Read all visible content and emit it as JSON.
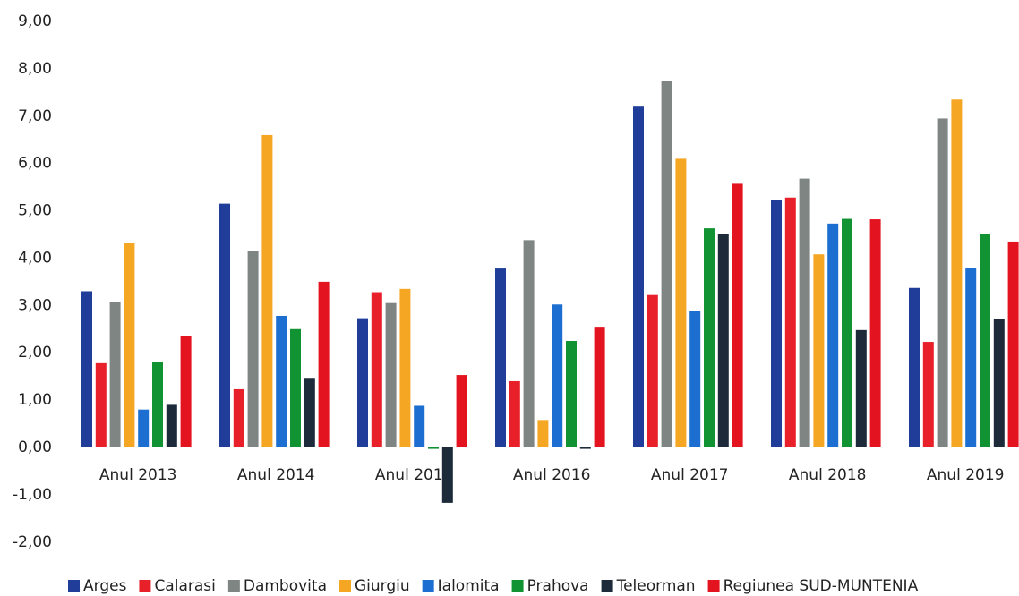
{
  "chart_data": {
    "type": "bar",
    "categories": [
      "Anul 2013",
      "Anul 2014",
      "Anul 2015",
      "Anul 2016",
      "Anul 2017",
      "Anul 2018",
      "Anul 2019"
    ],
    "series": [
      {
        "name": "Arges",
        "color": "#1f3d99",
        "values": [
          3.3,
          5.15,
          2.73,
          3.78,
          7.2,
          5.23,
          3.37
        ]
      },
      {
        "name": "Calarasi",
        "color": "#e8202a",
        "values": [
          1.78,
          1.23,
          3.28,
          1.4,
          3.22,
          5.28,
          2.23
        ]
      },
      {
        "name": "Dambovita",
        "color": "#7f8583",
        "values": [
          3.08,
          4.15,
          3.05,
          4.38,
          7.75,
          5.68,
          6.95
        ]
      },
      {
        "name": "Giurgiu",
        "color": "#f5a623",
        "values": [
          4.32,
          6.6,
          3.35,
          0.58,
          6.1,
          4.08,
          7.35
        ]
      },
      {
        "name": "Ialomita",
        "color": "#1c6fd1",
        "values": [
          0.8,
          2.78,
          0.88,
          3.02,
          2.88,
          4.73,
          3.8
        ]
      },
      {
        "name": "Prahova",
        "color": "#119233",
        "values": [
          1.8,
          2.5,
          -0.03,
          2.25,
          4.63,
          4.83,
          4.5
        ]
      },
      {
        "name": "Teleorman",
        "color": "#1c2a3a",
        "values": [
          0.9,
          1.47,
          -1.17,
          -0.03,
          4.5,
          2.48,
          2.72
        ]
      },
      {
        "name": "Regiunea SUD-MUNTENIA",
        "color": "#e3131f",
        "values": [
          2.35,
          3.5,
          1.53,
          2.55,
          5.57,
          4.82,
          4.35
        ]
      }
    ],
    "ylim": [
      -2,
      9
    ],
    "yticks": [
      {
        "value": -2,
        "label": "-2,00"
      },
      {
        "value": -1,
        "label": "-1,00"
      },
      {
        "value": 0,
        "label": "0,00"
      },
      {
        "value": 1,
        "label": "1,00"
      },
      {
        "value": 2,
        "label": "2,00"
      },
      {
        "value": 3,
        "label": "3,00"
      },
      {
        "value": 4,
        "label": "4,00"
      },
      {
        "value": 5,
        "label": "5,00"
      },
      {
        "value": 6,
        "label": "6,00"
      },
      {
        "value": 7,
        "label": "7,00"
      },
      {
        "value": 8,
        "label": "8,00"
      },
      {
        "value": 9,
        "label": "9,00"
      }
    ],
    "grid": false,
    "legend": "bottom"
  }
}
